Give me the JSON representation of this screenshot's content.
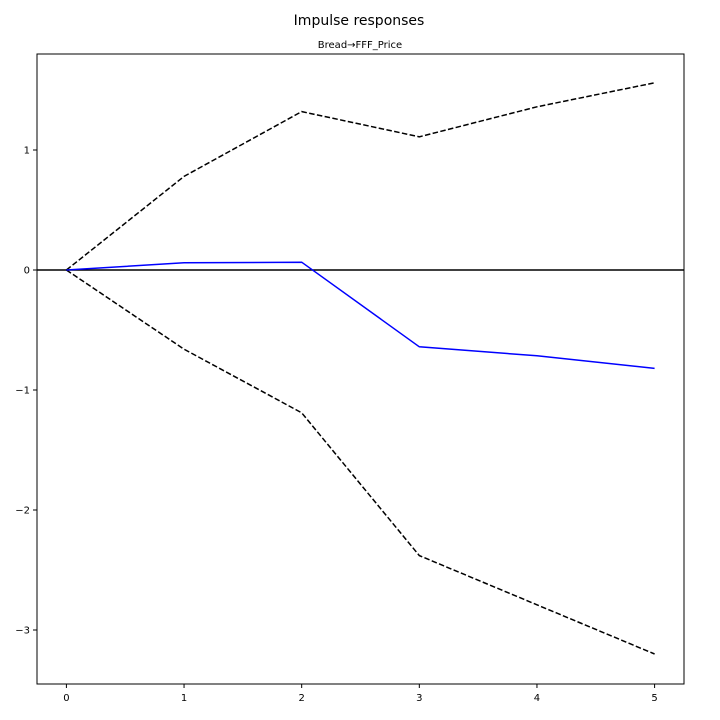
{
  "chart_data": {
    "type": "line",
    "title": "Impulse responses",
    "subtitle": "Bread→FFF_Price",
    "xlim": [
      -0.25,
      5.25
    ],
    "ylim": [
      -3.45,
      1.8
    ],
    "x_ticks": [
      0,
      1,
      2,
      3,
      4,
      5
    ],
    "y_ticks": [
      -3,
      -2,
      -1,
      0,
      1
    ],
    "x_tick_labels": [
      "0",
      "1",
      "2",
      "3",
      "4",
      "5"
    ],
    "y_tick_labels": [
      "−3",
      "−2",
      "−1",
      "0",
      "1"
    ],
    "zero_line": 0,
    "grid": false,
    "x": [
      0,
      1,
      2,
      3,
      4,
      5
    ],
    "series": [
      {
        "values": [
          0,
          0.06,
          0.065,
          -0.64,
          -0.715,
          -0.82
        ],
        "color": "#0000ff",
        "style": "solid"
      },
      {
        "values": [
          0,
          0.78,
          1.32,
          1.11,
          1.36,
          1.56
        ],
        "color": "#000000",
        "style": "dashed"
      },
      {
        "values": [
          0,
          -0.66,
          -1.19,
          -2.38,
          -2.79,
          -3.2
        ],
        "color": "#000000",
        "style": "dashed"
      }
    ]
  }
}
